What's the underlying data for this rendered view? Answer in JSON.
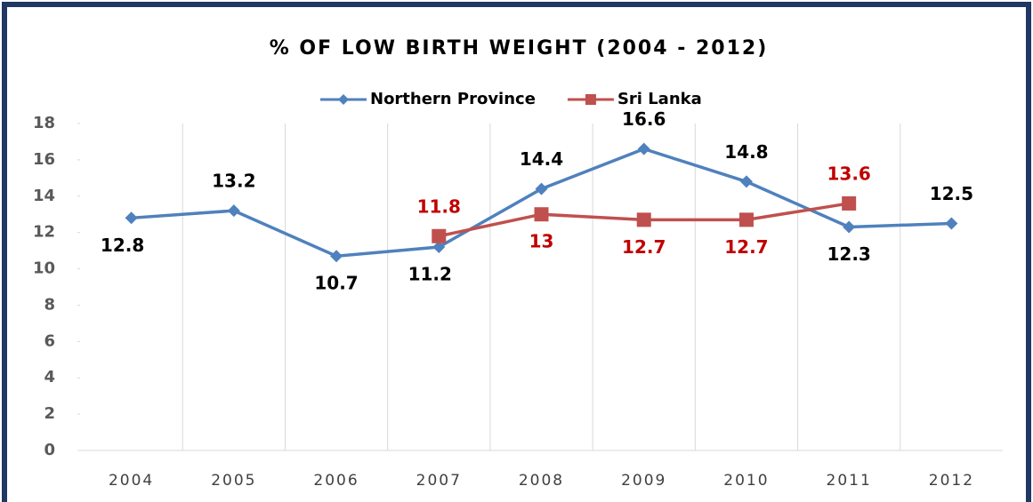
{
  "chart_data": {
    "type": "line",
    "title": "% OF LOW BIRTH WEIGHT (2004 - 2012)",
    "categories": [
      "2004",
      "2005",
      "2006",
      "2007",
      "2008",
      "2009",
      "2010",
      "2011",
      "2012"
    ],
    "series": [
      {
        "name": "Northern Province",
        "color": "#4f81bd",
        "label_color": "#000000",
        "marker": "diamond",
        "values": [
          12.8,
          13.2,
          10.7,
          11.2,
          14.4,
          16.6,
          14.8,
          12.3,
          12.5
        ]
      },
      {
        "name": "Sri Lanka",
        "color": "#c0504d",
        "label_color": "#c00000",
        "marker": "square",
        "values": [
          null,
          null,
          null,
          11.8,
          13,
          12.7,
          12.7,
          13.6,
          null
        ]
      }
    ],
    "ylim": [
      0,
      18
    ],
    "yticks": [
      0,
      2,
      4,
      6,
      8,
      10,
      12,
      14,
      16,
      18
    ],
    "grid": true,
    "legend": "top"
  }
}
